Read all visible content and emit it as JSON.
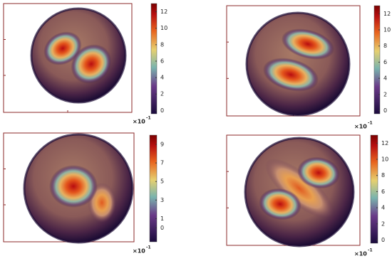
{
  "chart_data": [
    {
      "type": "heatmap",
      "ylim": [
        -0.4,
        13
      ],
      "yticks": [
        0,
        2,
        4,
        6,
        8,
        10,
        12
      ],
      "multiplier": "×10",
      "multiplier_power": "-1"
    },
    {
      "type": "heatmap",
      "ylim": [
        -0.4,
        13
      ],
      "yticks": [
        0,
        2,
        4,
        6,
        8,
        10,
        12
      ],
      "multiplier": "×10",
      "multiplier_power": "-1"
    },
    {
      "type": "heatmap",
      "ylim": [
        -1.5,
        10
      ],
      "yticks": [
        0,
        1,
        3,
        5,
        7,
        9
      ],
      "multiplier": "×10",
      "multiplier_power": "-1"
    },
    {
      "type": "heatmap",
      "ylim": [
        -0.4,
        13
      ],
      "yticks": [
        0,
        2,
        4,
        6,
        8,
        10,
        12
      ],
      "multiplier": "×10",
      "multiplier_power": "-1"
    }
  ]
}
